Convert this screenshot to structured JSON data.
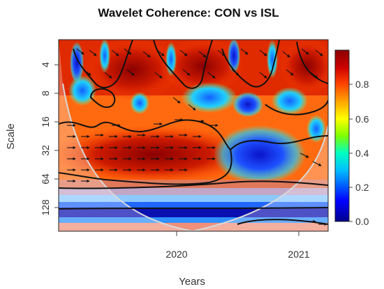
{
  "chart_data": {
    "type": "heatmap",
    "title": "Wavelet Coherence: CON vs ISL",
    "xlabel": "Years",
    "ylabel": "Scale",
    "x_ticks": [
      {
        "label": "2020",
        "value": 2020.0
      },
      {
        "label": "2021",
        "value": 2021.0
      }
    ],
    "xlim": [
      2019.05,
      2021.25
    ],
    "y_scale": "log2",
    "y_reversed": true,
    "y_ticks": [
      4,
      8,
      16,
      32,
      64,
      128
    ],
    "ylim": [
      2,
      200
    ],
    "colorbar": {
      "ticks": [
        0.0,
        0.2,
        0.4,
        0.6,
        0.8
      ],
      "range": [
        0,
        1
      ],
      "colors": [
        "#00008b",
        "#0000ff",
        "#00bfff",
        "#00ffc0",
        "#7fff00",
        "#ffff00",
        "#ffa500",
        "#ff4500",
        "#cc0000",
        "#8b0000"
      ]
    },
    "regions": [
      {
        "name": "high coherence band",
        "years": [
          2019.15,
          2020.5
        ],
        "scale": [
          16,
          64
        ],
        "coherence": 0.9
      },
      {
        "name": "low coherence region",
        "years": [
          2020.4,
          2021.1
        ],
        "scale": [
          20,
          70
        ],
        "coherence": 0.15
      },
      {
        "name": "low coherence band",
        "years": [
          2019.05,
          2021.25
        ],
        "scale": [
          110,
          150
        ],
        "coherence": 0.05
      }
    ],
    "cone_of_influence": true,
    "significance_contours": true,
    "phase_arrows": true
  }
}
